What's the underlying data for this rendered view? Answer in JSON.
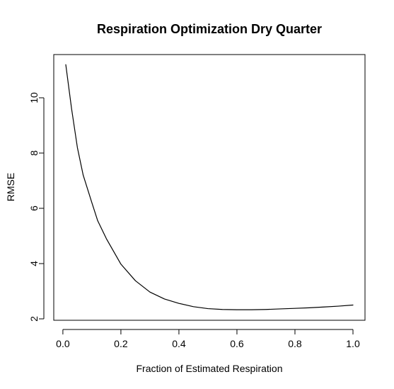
{
  "chart_data": {
    "type": "line",
    "title": "Respiration Optimization Dry Quarter",
    "xlabel": "Fraction of Estimated Respiration",
    "ylabel": "RMSE",
    "xlim": [
      0.0,
      1.0
    ],
    "ylim": [
      2.0,
      11.2
    ],
    "xticks": [
      0.0,
      0.2,
      0.4,
      0.6,
      0.8,
      1.0
    ],
    "xtick_labels": [
      "0.0",
      "0.2",
      "0.4",
      "0.6",
      "0.8",
      "1.0"
    ],
    "yticks": [
      2,
      4,
      6,
      8,
      10
    ],
    "ytick_labels": [
      "2",
      "4",
      "6",
      "8",
      "10"
    ],
    "grid": false,
    "series": [
      {
        "color": "#000000",
        "x": [
          0.01,
          0.03,
          0.05,
          0.07,
          0.1,
          0.12,
          0.15,
          0.2,
          0.25,
          0.3,
          0.35,
          0.4,
          0.45,
          0.5,
          0.55,
          0.6,
          0.65,
          0.7,
          0.75,
          0.8,
          0.85,
          0.9,
          0.95,
          1.0
        ],
        "y": [
          11.2,
          9.6,
          8.2,
          7.2,
          6.2,
          5.55,
          4.9,
          3.98,
          3.38,
          2.97,
          2.72,
          2.56,
          2.44,
          2.37,
          2.34,
          2.33,
          2.33,
          2.34,
          2.36,
          2.38,
          2.4,
          2.43,
          2.46,
          2.5
        ]
      }
    ]
  }
}
